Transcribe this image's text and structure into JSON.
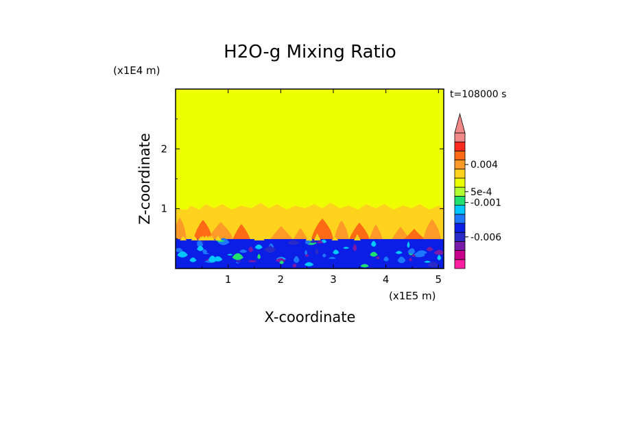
{
  "chart_data": {
    "type": "heatmap",
    "title": "H2O-g Mixing Ratio",
    "xlabel": "X-coordinate",
    "ylabel": "Z-coordinate",
    "x_unit": "(x1E5 m)",
    "y_unit": "(x1E4 m)",
    "time_label": "t=108000 s",
    "xlim": [
      0,
      5.1
    ],
    "ylim": [
      0,
      3.0
    ],
    "x_ticks": [
      "1",
      "2",
      "3",
      "4",
      "5"
    ],
    "y_ticks": [
      "1",
      "2"
    ],
    "grid": false,
    "colorbar": {
      "levels": [
        "0.004",
        "5e-4",
        "-0.001",
        "-0.006"
      ],
      "colors": [
        "#ff1ea0",
        "#c8008c",
        "#7a1aa8",
        "#2a2ac8",
        "#0a1ee6",
        "#1e78ff",
        "#00c8ff",
        "#20e070",
        "#b0ff30",
        "#eeff00",
        "#ffd21e",
        "#ff9a28",
        "#ff6a14",
        "#ff2a1e",
        "#f08888"
      ],
      "extend": "max"
    },
    "regions": [
      {
        "z_range": [
          0,
          0.5
        ],
        "value": "negative (blue, -0.001 to -0.008)"
      },
      {
        "z_range": [
          0.5,
          1.0
        ],
        "value": "positive (orange, 5e-4 to 0.004)"
      },
      {
        "z_range": [
          1.0,
          3.0
        ],
        "value": "near zero (yellow)"
      }
    ]
  }
}
